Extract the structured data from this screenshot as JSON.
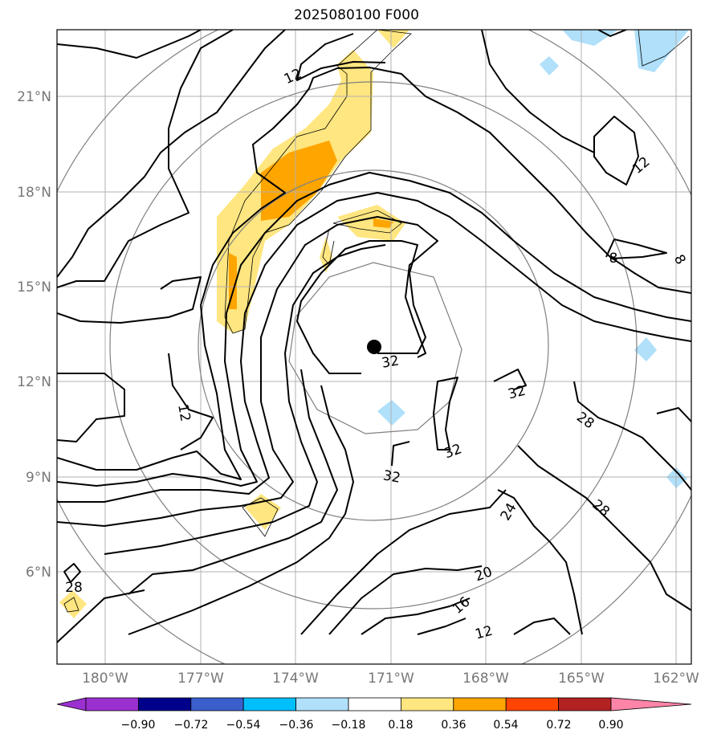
{
  "title": "2025080100 F000",
  "map": {
    "lon_labels": [
      "180°W",
      "177°W",
      "174°W",
      "171°W",
      "168°W",
      "165°W",
      "162°W"
    ],
    "lat_labels": [
      "21°N",
      "18°N",
      "15°N",
      "12°N",
      "9°N",
      "6°N"
    ],
    "contour_labels": [
      "12",
      "12",
      "12",
      "8",
      "8",
      "32",
      "32",
      "32",
      "32",
      "28",
      "28",
      "28",
      "24",
      "20",
      "16",
      "12"
    ],
    "center_marker": "storm-center-dot",
    "colors": {
      "contour": "#000000",
      "range_rings": "#808080",
      "grid": "#b0b0b0",
      "yellow": "#ffe680",
      "orange": "#ffa500",
      "light_blue": "#b0e0fa"
    }
  },
  "colorbar": {
    "labels": [
      "−0.90",
      "−0.72",
      "−0.54",
      "−0.36",
      "−0.18",
      "0.18",
      "0.36",
      "0.54",
      "0.72",
      "0.90"
    ],
    "colors": [
      "#9b30d0",
      "#00008b",
      "#3a5fcd",
      "#00bfff",
      "#b0e0fa",
      "#ffffff",
      "#ffe680",
      "#ffa500",
      "#ff4500",
      "#b22222",
      "#ff85a8"
    ]
  }
}
